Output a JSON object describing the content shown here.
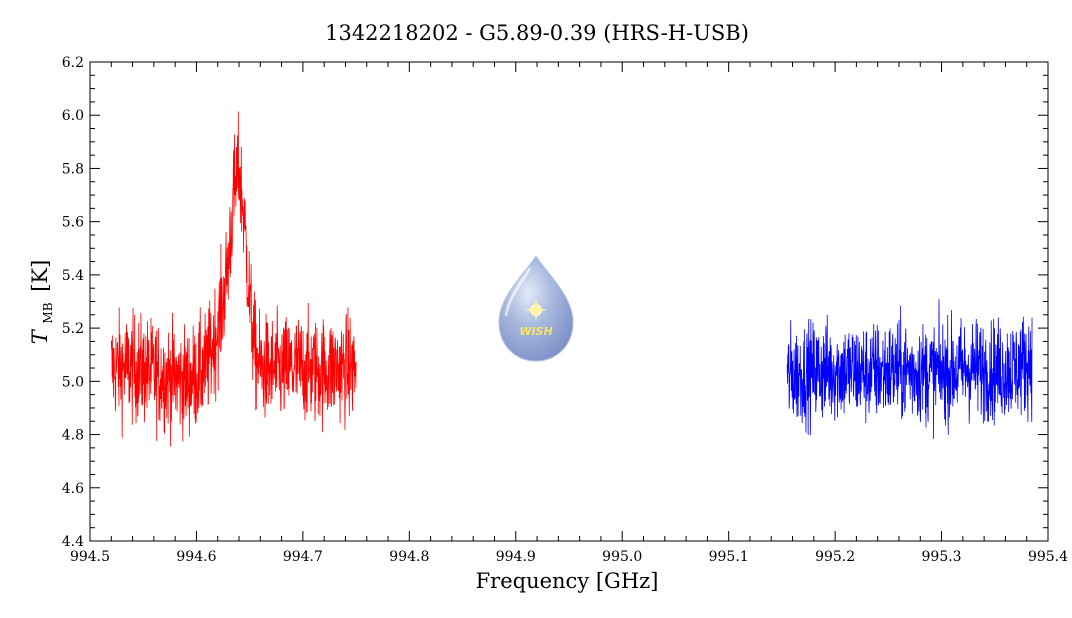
{
  "chart_data": {
    "type": "line",
    "title": "1342218202 - G5.89-0.39 (HRS-H-USB)",
    "xlabel": "Frequency [GHz]",
    "ylabel_main": "T",
    "ylabel_sub": "MB",
    "ylabel_unit": "[K]",
    "xlim": [
      994.5,
      995.4
    ],
    "ylim": [
      4.4,
      6.2
    ],
    "xticks": [
      "994.5",
      "994.6",
      "994.7",
      "994.8",
      "994.9",
      "995.0",
      "995.1",
      "995.2",
      "995.3",
      "995.4"
    ],
    "yticks": [
      "4.4",
      "4.6",
      "4.8",
      "5.0",
      "5.2",
      "5.4",
      "5.6",
      "5.8",
      "6.0",
      "6.2"
    ],
    "series": [
      {
        "color": "#ff0000",
        "x": [
          994.52,
          994.53,
          994.54,
          994.55,
          994.56,
          994.57,
          994.58,
          994.59,
          994.6,
          994.61,
          994.62,
          994.625,
          994.63,
          994.635,
          994.64,
          994.645,
          994.65,
          994.655,
          994.66,
          994.67,
          994.68,
          994.69,
          994.7,
          994.71,
          994.72,
          994.73,
          994.74,
          994.75
        ],
        "y": [
          5.05,
          5.05,
          5.05,
          5.04,
          5.03,
          5.02,
          5.01,
          5.0,
          5.02,
          5.06,
          5.2,
          5.3,
          5.45,
          5.7,
          5.8,
          5.6,
          5.3,
          5.1,
          5.05,
          5.04,
          5.04,
          5.05,
          5.05,
          5.04,
          5.04,
          5.05,
          5.05,
          5.05
        ],
        "noise_amplitude": 0.18
      },
      {
        "color": "#0000ff",
        "x": [
          995.155,
          995.17,
          995.19,
          995.21,
          995.23,
          995.25,
          995.27,
          995.29,
          995.31,
          995.33,
          995.35,
          995.37,
          995.385
        ],
        "y": [
          5.02,
          5.03,
          5.04,
          5.04,
          5.03,
          5.04,
          5.04,
          5.03,
          5.04,
          5.05,
          5.04,
          5.05,
          5.08
        ],
        "noise_amplitude": 0.17
      }
    ],
    "grid": false,
    "legend": "none"
  },
  "logo": {
    "name": "WISH",
    "text": "WISH"
  }
}
